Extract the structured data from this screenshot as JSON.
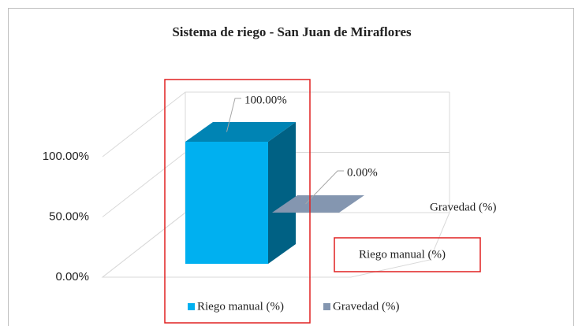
{
  "chart_data": {
    "type": "bar3d",
    "title": "Sistema de riego - San Juan de Miraflores",
    "series": [
      {
        "name": "Riego manual (%)",
        "color": "#00b0f0",
        "values": [
          100
        ],
        "value_labels": [
          "100.00%"
        ]
      },
      {
        "name": "Gravedad (%)",
        "color": "#8496b0",
        "values": [
          0
        ],
        "value_labels": [
          "0.00%"
        ]
      }
    ],
    "ylim": [
      0,
      100
    ],
    "yticks": [
      {
        "value": 0,
        "label": "0.00%"
      },
      {
        "value": 50,
        "label": "50.00%"
      },
      {
        "value": 100,
        "label": "100.00%"
      }
    ],
    "grid": true
  }
}
